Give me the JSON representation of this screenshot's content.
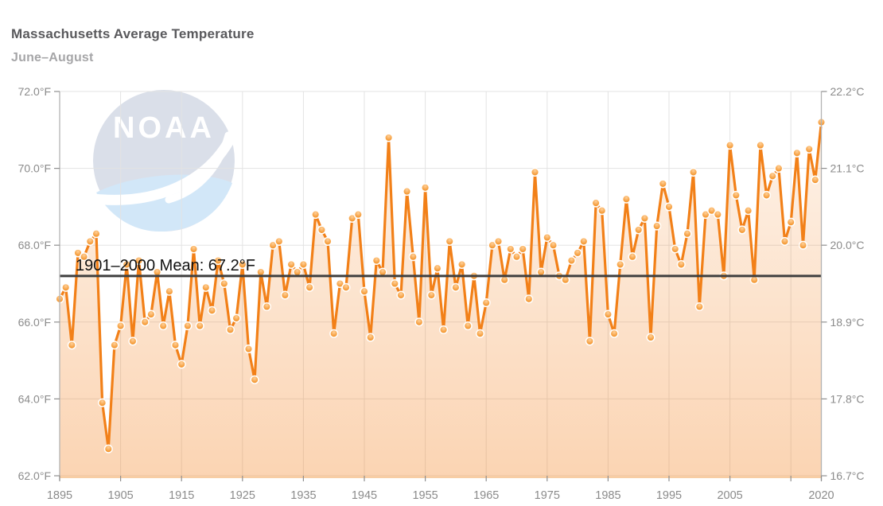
{
  "header": {
    "title": "Massachusetts Average Temperature",
    "subtitle": "June–August"
  },
  "watermark": {
    "logo_text": "NOAA"
  },
  "chart_data": {
    "type": "line",
    "title": "Massachusetts Average Temperature",
    "subtitle": "June–August",
    "xlabel": "",
    "ylabel_left": "°F",
    "ylabel_right": "°C",
    "ylim": [
      62.0,
      72.0
    ],
    "grid": true,
    "legend_position": "none",
    "mean_line": {
      "value": 67.2,
      "label": "1901–2000 Mean: 67.2°F"
    },
    "years": [
      1895,
      1896,
      1897,
      1898,
      1899,
      1900,
      1901,
      1902,
      1903,
      1904,
      1905,
      1906,
      1907,
      1908,
      1909,
      1910,
      1911,
      1912,
      1913,
      1914,
      1915,
      1916,
      1917,
      1918,
      1919,
      1920,
      1921,
      1922,
      1923,
      1924,
      1925,
      1926,
      1927,
      1928,
      1929,
      1930,
      1931,
      1932,
      1933,
      1934,
      1935,
      1936,
      1937,
      1938,
      1939,
      1940,
      1941,
      1942,
      1943,
      1944,
      1945,
      1946,
      1947,
      1948,
      1949,
      1950,
      1951,
      1952,
      1953,
      1954,
      1955,
      1956,
      1957,
      1958,
      1959,
      1960,
      1961,
      1962,
      1963,
      1964,
      1965,
      1966,
      1967,
      1968,
      1969,
      1970,
      1971,
      1972,
      1973,
      1974,
      1975,
      1976,
      1977,
      1978,
      1979,
      1980,
      1981,
      1982,
      1983,
      1984,
      1985,
      1986,
      1987,
      1988,
      1989,
      1990,
      1991,
      1992,
      1993,
      1994,
      1995,
      1996,
      1997,
      1998,
      1999,
      2000,
      2001,
      2002,
      2003,
      2004,
      2005,
      2006,
      2007,
      2008,
      2009,
      2010,
      2011,
      2012,
      2013,
      2014,
      2015,
      2016,
      2017,
      2018,
      2019,
      2020
    ],
    "values": [
      66.6,
      66.9,
      65.4,
      67.8,
      67.7,
      68.1,
      68.3,
      63.9,
      62.7,
      65.4,
      65.9,
      67.5,
      65.5,
      67.6,
      66.0,
      66.2,
      67.3,
      65.9,
      66.8,
      65.4,
      64.9,
      65.9,
      67.9,
      65.9,
      66.9,
      66.3,
      67.6,
      67.0,
      65.8,
      66.1,
      67.5,
      65.3,
      64.5,
      67.3,
      66.4,
      68.0,
      68.1,
      66.7,
      67.5,
      67.3,
      67.5,
      66.9,
      68.8,
      68.4,
      68.1,
      65.7,
      67.0,
      66.9,
      68.7,
      68.8,
      66.8,
      65.6,
      67.6,
      67.3,
      70.8,
      67.0,
      66.7,
      69.4,
      67.7,
      66.0,
      69.5,
      66.7,
      67.4,
      65.8,
      68.1,
      66.9,
      67.5,
      65.9,
      67.2,
      65.7,
      66.5,
      68.0,
      68.1,
      67.1,
      67.9,
      67.7,
      67.9,
      66.6,
      69.9,
      67.3,
      68.2,
      68.0,
      67.2,
      67.1,
      67.6,
      67.8,
      68.1,
      65.5,
      69.1,
      68.9,
      66.2,
      65.7,
      67.5,
      69.2,
      67.7,
      68.4,
      68.7,
      65.6,
      68.5,
      69.6,
      69.0,
      67.9,
      67.5,
      68.3,
      69.9,
      66.4,
      68.8,
      68.9,
      68.8,
      67.2,
      70.6,
      69.3,
      68.4,
      68.9,
      67.1,
      70.6,
      69.3,
      69.8,
      70.0,
      68.1,
      68.6,
      70.4,
      68.0,
      70.5,
      69.7,
      71.2
    ],
    "yticks": [
      {
        "value": 72,
        "label_f": "72.0°F",
        "label_c": "22.2°C"
      },
      {
        "value": 70,
        "label_f": "70.0°F",
        "label_c": "21.1°C"
      },
      {
        "value": 68,
        "label_f": "68.0°F",
        "label_c": "20.0°C"
      },
      {
        "value": 66,
        "label_f": "66.0°F",
        "label_c": "18.9°C"
      },
      {
        "value": 64,
        "label_f": "64.0°F",
        "label_c": "17.8°C"
      },
      {
        "value": 62,
        "label_f": "62.0°F",
        "label_c": "16.7°C"
      }
    ],
    "xticks": [
      {
        "year": 1895,
        "label": "1895"
      },
      {
        "year": 1905,
        "label": "1905"
      },
      {
        "year": 1915,
        "label": "1915"
      },
      {
        "year": 1925,
        "label": "1925"
      },
      {
        "year": 1935,
        "label": "1935"
      },
      {
        "year": 1945,
        "label": "1945"
      },
      {
        "year": 1955,
        "label": "1955"
      },
      {
        "year": 1965,
        "label": "1965"
      },
      {
        "year": 1975,
        "label": "1975"
      },
      {
        "year": 1985,
        "label": "1985"
      },
      {
        "year": 1995,
        "label": "1995"
      },
      {
        "year": 2005,
        "label": "2005"
      },
      {
        "year": 2015,
        "label": ""
      },
      {
        "year": 2020,
        "label": "2020"
      }
    ],
    "colors": {
      "line": "#f28018",
      "marker_top": "#ffd098",
      "marker_bottom": "#ef7c00",
      "marker_ring": "#ffffff",
      "area_top": "rgba(243,130,32,0.10)",
      "area_bottom": "rgba(243,130,32,0.34)",
      "mean_line": "#3f3f3f",
      "grid": "#e3e3e3",
      "spine": "#b3b3b3",
      "tick": "#8f8f8f",
      "tick_label": "#8b8b8b",
      "mean_label": "#111111",
      "axis_bottom_band": "#f7cda4",
      "logo_circle": "#dadfe9",
      "logo_wave": "#d2e7f8",
      "logo_text": "#ffffff"
    }
  }
}
